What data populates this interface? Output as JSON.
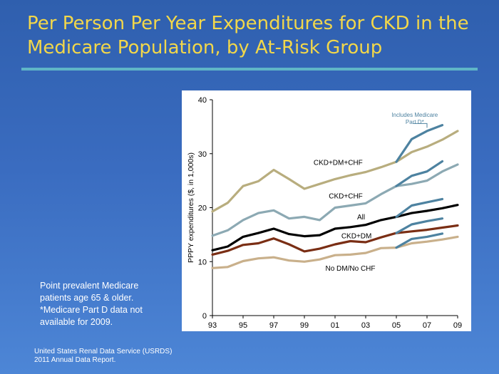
{
  "slide": {
    "title_line1": "Per Person Per Year Expenditures for CKD in the",
    "title_line2": "Medicare Population, by At-Risk Group",
    "note_lines": [
      "Point prevalent Medicare",
      "patients age 65 & older.",
      "*Medicare Part D data not",
      "available for 2009."
    ],
    "source_lines": [
      "United States Renal Data Service (USRDS)",
      "2011 Annual Data Report."
    ]
  },
  "chart_data": {
    "type": "line",
    "ylabel": "PPPY expenditures ($, in 1,000s)",
    "xlabel": "",
    "ylim": [
      0,
      40
    ],
    "yticks": [
      0,
      10,
      20,
      30,
      40
    ],
    "xlim": [
      1993,
      2009
    ],
    "xtick_values": [
      1993,
      1995,
      1997,
      1999,
      2001,
      2003,
      2005,
      2007,
      2009
    ],
    "xtick_labels": [
      "93",
      "95",
      "97",
      "99",
      "01",
      "03",
      "05",
      "07",
      "09"
    ],
    "grid": false,
    "annotation": "Includes Medicare\nPart D*",
    "colors": {
      "ckd_dm_chf": "#b8ad7e",
      "ckd_chf": "#8ca9b3",
      "all": "#000000",
      "ckd_dm": "#7a2e14",
      "no_dm_chf": "#c9b08b",
      "part_d": "#4d82a0",
      "annotation": "#4d82a0"
    },
    "series": [
      {
        "name": "CKD+DM+CHF",
        "color": "#b8ad7e",
        "x": [
          1993,
          1994,
          1995,
          1996,
          1997,
          1998,
          1999,
          2000,
          2001,
          2002,
          2003,
          2004,
          2005,
          2006,
          2007,
          2008,
          2009
        ],
        "values": [
          19.3,
          20.9,
          24.0,
          24.9,
          27.0,
          25.3,
          23.5,
          24.4,
          25.3,
          26.0,
          26.6,
          27.5,
          28.5,
          30.3,
          31.3,
          32.6,
          34.2
        ]
      },
      {
        "name": "CKD+CHF",
        "color": "#8ca9b3",
        "x": [
          1993,
          1994,
          1995,
          1996,
          1997,
          1998,
          1999,
          2000,
          2001,
          2002,
          2003,
          2004,
          2005,
          2006,
          2007,
          2008,
          2009
        ],
        "values": [
          14.8,
          15.8,
          17.7,
          19.0,
          19.5,
          18.0,
          18.3,
          17.7,
          20.0,
          20.4,
          20.8,
          22.5,
          24.0,
          24.4,
          25.0,
          26.7,
          28.0
        ]
      },
      {
        "name": "All",
        "color": "#000000",
        "x": [
          1993,
          1994,
          1995,
          1996,
          1997,
          1998,
          1999,
          2000,
          2001,
          2002,
          2003,
          2004,
          2005,
          2006,
          2007,
          2008,
          2009
        ],
        "values": [
          12.1,
          12.8,
          14.6,
          15.3,
          16.1,
          15.1,
          14.7,
          14.9,
          16.1,
          16.4,
          16.8,
          17.7,
          18.3,
          19.0,
          19.4,
          19.9,
          20.5
        ]
      },
      {
        "name": "CKD+DM",
        "color": "#7a2e14",
        "x": [
          1993,
          1994,
          1995,
          1996,
          1997,
          1998,
          1999,
          2000,
          2001,
          2002,
          2003,
          2004,
          2005,
          2006,
          2007,
          2008,
          2009
        ],
        "values": [
          11.3,
          12.0,
          13.1,
          13.4,
          14.3,
          13.2,
          11.9,
          12.4,
          13.2,
          13.8,
          13.6,
          14.5,
          15.3,
          15.6,
          15.9,
          16.3,
          16.7
        ]
      },
      {
        "name": "No DM/No CHF",
        "color": "#c9b08b",
        "x": [
          1993,
          1994,
          1995,
          1996,
          1997,
          1998,
          1999,
          2000,
          2001,
          2002,
          2003,
          2004,
          2005,
          2006,
          2007,
          2008,
          2009
        ],
        "values": [
          8.8,
          9.0,
          10.1,
          10.6,
          10.8,
          10.2,
          10.0,
          10.4,
          11.2,
          11.3,
          11.6,
          12.5,
          12.6,
          13.4,
          13.7,
          14.1,
          14.6
        ]
      }
    ],
    "part_d_series": [
      {
        "base": "CKD+DM+CHF",
        "x": [
          2005,
          2006,
          2007,
          2008
        ],
        "values": [
          28.5,
          32.7,
          34.2,
          35.3
        ]
      },
      {
        "base": "CKD+CHF",
        "x": [
          2005,
          2006,
          2007,
          2008
        ],
        "values": [
          24.0,
          25.9,
          26.7,
          28.6
        ]
      },
      {
        "base": "All",
        "x": [
          2005,
          2006,
          2007,
          2008
        ],
        "values": [
          18.3,
          20.4,
          21.0,
          21.6
        ]
      },
      {
        "base": "CKD+DM",
        "x": [
          2005,
          2006,
          2007,
          2008
        ],
        "values": [
          15.3,
          16.9,
          17.5,
          18.0
        ]
      },
      {
        "base": "No DM/No CHF",
        "x": [
          2005,
          2006,
          2007,
          2008
        ],
        "values": [
          12.6,
          14.2,
          14.6,
          15.2
        ]
      }
    ],
    "series_labels": [
      {
        "text": "CKD+DM+CHF",
        "x": 2001.2,
        "y": 27.9
      },
      {
        "text": "CKD+CHF",
        "x": 2001.7,
        "y": 21.7
      },
      {
        "text": "All",
        "x": 2002.7,
        "y": 17.8
      },
      {
        "text": "CKD+DM",
        "x": 2002.4,
        "y": 14.3
      },
      {
        "text": "No DM/No CHF",
        "x": 2002.0,
        "y": 8.3
      }
    ],
    "annotation_pos": {
      "x": 2006.2,
      "y": 36.8
    },
    "annotation_bracket": {
      "x_start": 2006.1,
      "x_end": 2007.0,
      "y": 35.6
    }
  }
}
